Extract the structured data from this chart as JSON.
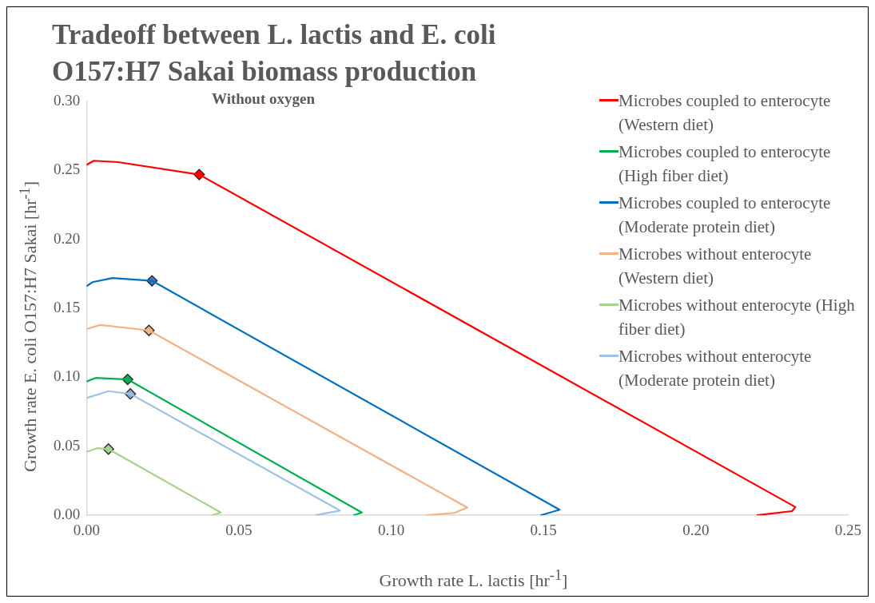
{
  "chart_data": {
    "type": "line",
    "title": "Tradeoff between L. lactis and E. coli O157:H7 Sakai biomass production",
    "subtitle": "Without oxygen",
    "xlabel": "Growth rate L. lactis [hr$^{-1}$]",
    "ylabel": "Growth rate E. coli O157:H7 Sakai [hr$^{-1}$]",
    "xlim": [
      0,
      0.25
    ],
    "ylim": [
      0,
      0.3
    ],
    "xticks": [
      {
        "value": 0,
        "label": "0.00"
      },
      {
        "value": 0.05,
        "label": "0.05"
      },
      {
        "value": 0.1,
        "label": "0.10"
      },
      {
        "value": 0.15,
        "label": "0.15"
      },
      {
        "value": 0.2,
        "label": "0.20"
      },
      {
        "value": 0.25,
        "label": "0.25"
      }
    ],
    "yticks": [
      {
        "value": 0,
        "label": "0.00"
      },
      {
        "value": 0.05,
        "label": "0.05"
      },
      {
        "value": 0.1,
        "label": "0.10"
      },
      {
        "value": 0.15,
        "label": "0.15"
      },
      {
        "value": 0.2,
        "label": "0.20"
      },
      {
        "value": 0.25,
        "label": "0.25"
      },
      {
        "value": 0.3,
        "label": "0.30"
      }
    ],
    "grid": false,
    "legend": "right",
    "marker": "none",
    "line_style": "solid",
    "series": [
      {
        "name": "Microbes coupled to enterocyte (Western diet)",
        "color": "#ff0000",
        "x": [
          0,
          0.0024,
          0.0104,
          0.037,
          0.2327,
          0.2316,
          0.22
        ],
        "values": [
          0.254,
          0.257,
          0.256,
          0.247,
          0.006,
          0.003,
          0
        ]
      },
      {
        "name": "Microbes coupled to enterocyte (High fiber diet)",
        "color": "#00b050",
        "x": [
          0,
          0.003,
          0.0135,
          0.0904,
          0.0875
        ],
        "values": [
          0.097,
          0.0996,
          0.0985,
          0.002,
          0
        ]
      },
      {
        "name": "Microbes coupled to enterocyte (Moderate protein diet)",
        "color": "#0070c0",
        "x": [
          0,
          0.002,
          0.0085,
          0.0215,
          0.1553,
          0.149
        ],
        "values": [
          0.166,
          0.169,
          0.172,
          0.17,
          0.004,
          0
        ]
      },
      {
        "name": "Microbes without enterocyte (Western diet)",
        "color": "#f4b183",
        "x": [
          0,
          0.0045,
          0.0205,
          0.125,
          0.1207,
          0.1114
        ],
        "values": [
          0.135,
          0.138,
          0.134,
          0.0056,
          0.0017,
          0
        ]
      },
      {
        "name": "Microbes without enterocyte (High fiber diet)",
        "color": "#a9d18e",
        "x": [
          0,
          0.0037,
          0.0072,
          0.0441,
          0.041
        ],
        "values": [
          0.046,
          0.0487,
          0.048,
          0.002,
          0
        ]
      },
      {
        "name": "Microbes without enterocyte (Moderate protein diet)",
        "color": "#9dc3e6",
        "x": [
          0,
          0.0072,
          0.0144,
          0.0832,
          0.075
        ],
        "values": [
          0.085,
          0.09,
          0.088,
          0.0034,
          0
        ]
      },
      {
        "type": "scatter",
        "marker": "diamond",
        "color": "#ff0000",
        "x": [
          0.037
        ],
        "values": [
          0.247
        ]
      },
      {
        "type": "scatter",
        "marker": "diamond",
        "color": "#00b050",
        "x": [
          0.0135
        ],
        "values": [
          0.0985
        ]
      },
      {
        "type": "scatter",
        "marker": "diamond",
        "color": "#4472c4",
        "x": [
          0.0215
        ],
        "values": [
          0.17
        ]
      },
      {
        "type": "scatter",
        "marker": "diamond",
        "color": "#f4b183",
        "x": [
          0.0205
        ],
        "values": [
          0.134
        ]
      },
      {
        "type": "scatter",
        "marker": "diamond",
        "color": "#a9d18e",
        "x": [
          0.0072
        ],
        "values": [
          0.048
        ]
      },
      {
        "type": "scatter",
        "marker": "diamond",
        "color": "#8faadc",
        "x": [
          0.0144
        ],
        "values": [
          0.088
        ]
      }
    ]
  }
}
